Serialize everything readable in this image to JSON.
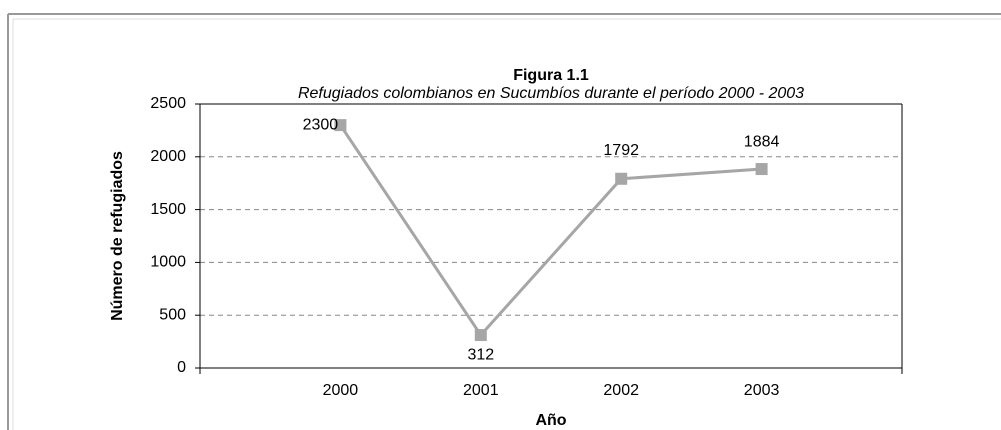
{
  "chart_data": {
    "type": "line",
    "title": "Figura 1.1",
    "subtitle": "Refugiados colombianos en Sucumbíos durante el período 2000 - 2003",
    "xlabel": "Año",
    "ylabel": "Número de refugiados",
    "categories": [
      "2000",
      "2001",
      "2002",
      "2003"
    ],
    "values": [
      2300,
      312,
      1792,
      1884
    ],
    "color": "#a6a6a6",
    "ylim": [
      0,
      2500
    ],
    "yticks": [
      0,
      500,
      1000,
      1500,
      2000,
      2500
    ],
    "grid": true
  }
}
